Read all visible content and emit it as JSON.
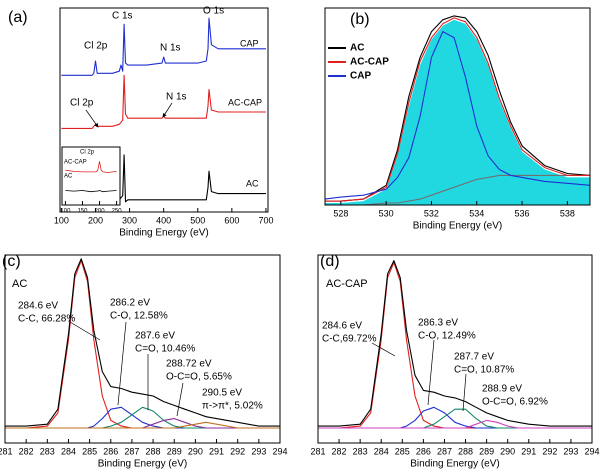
{
  "chart_data": [
    {
      "type": "line",
      "panel": "(a)",
      "x_label": "Binding Energy (eV)",
      "xlim": [
        96,
        706
      ],
      "xticks": [
        100,
        200,
        300,
        400,
        500,
        600,
        700
      ],
      "ylim": [
        0,
        100
      ],
      "legend": "inline",
      "x": [
        100,
        150,
        190,
        195,
        200,
        205,
        250,
        270,
        275,
        280,
        284,
        288,
        295,
        320,
        350,
        395,
        400,
        405,
        450,
        500,
        525,
        530,
        533,
        540,
        560,
        600,
        650,
        700
      ],
      "series": [
        {
          "name": "CAP",
          "color": "#1f2fd0",
          "values": [
            67,
            67,
            67,
            68,
            74,
            68,
            68,
            69,
            72,
            69,
            92,
            73,
            72,
            72,
            72,
            73,
            76,
            73,
            73,
            73,
            74,
            80,
            95,
            82,
            80,
            80,
            80,
            80
          ]
        },
        {
          "name": "AC-CAP",
          "color": "#e02020",
          "values": [
            41,
            41,
            41,
            42,
            43,
            42,
            42,
            43,
            44,
            45,
            67,
            48,
            46,
            46,
            46,
            46,
            47,
            46,
            46,
            46,
            46,
            52,
            60,
            50,
            49,
            49,
            49,
            49
          ]
        },
        {
          "name": "AC",
          "color": "#000000",
          "values": [
            6,
            6,
            6,
            6,
            6,
            6,
            6,
            6,
            7,
            8,
            28,
            5,
            6,
            6,
            6,
            6,
            6,
            6,
            6,
            6,
            6,
            12,
            20,
            10,
            9,
            9,
            9,
            9
          ]
        }
      ],
      "annotations": [
        {
          "lines": [
            "Cl 2p"
          ]
        },
        {
          "lines": [
            "C 1s"
          ]
        },
        {
          "lines": [
            "N 1s"
          ]
        },
        {
          "lines": [
            "O 1s"
          ]
        },
        {
          "lines": [
            "Cl 2p"
          ]
        },
        {
          "lines": [
            "N 1s"
          ]
        }
      ]
    },
    {
      "type": "line",
      "xlim": [
        90,
        260
      ],
      "xticks": [
        100,
        150,
        200,
        250
      ],
      "ylim": [
        0,
        100
      ],
      "legend": "inline",
      "x": [
        100,
        125,
        150,
        175,
        190,
        195,
        200,
        205,
        210,
        225,
        250
      ],
      "series": [
        {
          "name": "AC-CAP",
          "color": "#e02020",
          "values": [
            60,
            58,
            57,
            57,
            57,
            60,
            75,
            60,
            57,
            56,
            58
          ]
        },
        {
          "name": "AC",
          "color": "#000000",
          "values": [
            25,
            24,
            25,
            23,
            24,
            24,
            25,
            24,
            23,
            24,
            25
          ]
        }
      ],
      "annotations": [
        {
          "lines": [
            "Cl 2p"
          ]
        }
      ]
    },
    {
      "type": "line",
      "panel": "(b)",
      "x_label": "Binding Energy (eV)",
      "xlim": [
        527.3,
        539
      ],
      "xticks": [
        528,
        530,
        532,
        534,
        536,
        538
      ],
      "ylim": [
        0,
        100
      ],
      "legend": "upper left",
      "x": [
        527.3,
        528,
        529,
        530,
        530.5,
        531,
        531.5,
        532,
        532.5,
        533,
        533.5,
        534,
        534.5,
        535,
        535.5,
        536,
        537,
        538,
        539
      ],
      "series": [
        {
          "color": "#22d8e0",
          "fill": true,
          "values": [
            1,
            1,
            2,
            8,
            25,
            50,
            71,
            84,
            91,
            94,
            92,
            84,
            71,
            53,
            39,
            27,
            18,
            14,
            14
          ]
        },
        {
          "color": "#707070",
          "values": [
            0,
            0,
            0,
            1,
            1,
            2,
            3,
            5,
            7,
            9,
            11,
            13,
            14,
            15,
            15,
            15,
            15,
            15,
            15
          ]
        },
        {
          "name": "AC",
          "color": "#000000",
          "values": [
            2,
            2,
            3,
            10,
            28,
            55,
            75,
            88,
            94,
            96,
            95,
            88,
            76,
            58,
            42,
            30,
            20,
            16,
            15
          ]
        },
        {
          "name": "AC-CAP",
          "color": "#e02020",
          "values": [
            2,
            2,
            3,
            9,
            26,
            52,
            73,
            85,
            92,
            95,
            93,
            85,
            72,
            54,
            40,
            28,
            19,
            15,
            15
          ]
        },
        {
          "name": "CAP",
          "color": "#1f2fd0",
          "values": [
            3,
            4,
            5,
            8,
            14,
            24,
            45,
            75,
            88,
            85,
            65,
            40,
            25,
            18,
            15,
            14,
            12,
            11,
            10
          ]
        }
      ]
    },
    {
      "type": "line",
      "panel": "(c)",
      "label": "AC",
      "x_label": "Binding Energy (eV)",
      "xlim": [
        281,
        294
      ],
      "xticks": [
        281,
        282,
        283,
        284,
        285,
        286,
        287,
        288,
        289,
        290,
        291,
        292,
        293,
        294
      ],
      "ylim": [
        0,
        100
      ],
      "x": [
        281,
        282,
        283,
        283.5,
        284,
        284.3,
        284.6,
        284.9,
        285.2,
        285.6,
        286,
        286.5,
        287,
        287.5,
        288,
        288.5,
        289,
        289.5,
        290,
        290.5,
        291,
        292,
        293,
        294
      ],
      "series": [
        {
          "color": "#e02020",
          "values": [
            8,
            8,
            9,
            16,
            55,
            88,
            97,
            86,
            55,
            25,
            12,
            9,
            8,
            8,
            8,
            8,
            8,
            8,
            8,
            8,
            8,
            8,
            8,
            8
          ]
        },
        {
          "color": "#1f2fd0",
          "values": [
            8,
            8,
            8,
            8,
            8,
            8,
            8,
            8,
            9,
            13,
            18,
            19,
            15,
            11,
            9,
            8,
            8,
            8,
            8,
            8,
            8,
            8,
            8,
            8
          ]
        },
        {
          "color": "#12886a",
          "values": [
            8,
            8,
            8,
            8,
            8,
            8,
            8,
            8,
            8,
            8,
            9,
            11,
            15,
            19,
            17,
            12,
            9,
            8,
            8,
            8,
            8,
            8,
            8,
            8
          ]
        },
        {
          "color": "#8a2a9a",
          "values": [
            8,
            8,
            8,
            8,
            8,
            8,
            8,
            8,
            8,
            8,
            8,
            8,
            8,
            8,
            10,
            12,
            13,
            11,
            9,
            8,
            8,
            8,
            8,
            8
          ]
        },
        {
          "color": "#c07020",
          "values": [
            8,
            8,
            8,
            8,
            8,
            8,
            8,
            8,
            8,
            8,
            8,
            8,
            8,
            8,
            8,
            8,
            8,
            9,
            10,
            11,
            10,
            8,
            8,
            8
          ]
        },
        {
          "color": "#000000",
          "values": [
            9,
            9,
            10,
            18,
            58,
            90,
            98,
            88,
            60,
            38,
            30,
            29,
            27,
            26,
            25,
            22,
            20,
            18,
            16,
            14,
            13,
            11,
            9,
            9
          ]
        }
      ],
      "annotations": [
        {
          "lines": [
            "284.6 eV",
            "C-C, 66.28%"
          ]
        },
        {
          "lines": [
            "286.2 eV",
            "C-O, 12.58%"
          ]
        },
        {
          "lines": [
            "287.6 eV",
            "C=O, 10.46%"
          ]
        },
        {
          "lines": [
            "288.72 eV",
            "O-C=O, 5.65%"
          ]
        },
        {
          "lines": [
            "290.5 eV",
            "π->π*, 5.02%"
          ]
        }
      ]
    },
    {
      "type": "line",
      "panel": "(d)",
      "label": "AC-CAP",
      "x_label": "Binding Energy (eV)",
      "xlim": [
        281,
        294
      ],
      "xticks": [
        281,
        282,
        283,
        284,
        285,
        286,
        287,
        288,
        289,
        290,
        291,
        292,
        293,
        294
      ],
      "ylim": [
        0,
        100
      ],
      "x": [
        281,
        282,
        283,
        283.5,
        284,
        284.3,
        284.6,
        284.9,
        285.2,
        285.6,
        286,
        286.5,
        287,
        287.5,
        288,
        288.5,
        289,
        289.5,
        290,
        290.5,
        291,
        292,
        293,
        294
      ],
      "series": [
        {
          "color": "#e02020",
          "values": [
            8,
            8,
            9,
            16,
            55,
            88,
            96,
            86,
            55,
            25,
            12,
            9,
            8,
            8,
            8,
            8,
            8,
            8,
            8,
            8,
            8,
            8,
            8,
            8
          ]
        },
        {
          "color": "#1f2fd0",
          "values": [
            8,
            8,
            8,
            8,
            8,
            8,
            8,
            8,
            9,
            12,
            17,
            19,
            16,
            11,
            9,
            8,
            8,
            8,
            8,
            8,
            8,
            8,
            8,
            8
          ]
        },
        {
          "color": "#12886a",
          "values": [
            8,
            8,
            8,
            8,
            8,
            8,
            8,
            8,
            8,
            8,
            8,
            10,
            14,
            18,
            18,
            13,
            9,
            8,
            8,
            8,
            8,
            8,
            8,
            8
          ]
        },
        {
          "color": "#d040c0",
          "values": [
            8,
            8,
            8,
            8,
            8,
            8,
            8,
            8,
            8,
            8,
            8,
            8,
            8,
            8,
            8,
            10,
            12,
            11,
            9,
            8,
            8,
            8,
            8,
            8
          ]
        },
        {
          "color": "#000000",
          "values": [
            9,
            9,
            10,
            18,
            58,
            90,
            97,
            88,
            60,
            36,
            28,
            27,
            25,
            24,
            22,
            19,
            16,
            14,
            12,
            11,
            10,
            9,
            9,
            9
          ]
        }
      ],
      "annotations": [
        {
          "lines": [
            "284.6 eV",
            "C-C,69.72%"
          ]
        },
        {
          "lines": [
            "286.3 eV",
            "C-O, 12.49%"
          ]
        },
        {
          "lines": [
            "287.7 eV",
            "C=O, 10.87%"
          ]
        },
        {
          "lines": [
            "288.9 eV",
            "O-C=O, 6.92%"
          ]
        }
      ]
    }
  ]
}
